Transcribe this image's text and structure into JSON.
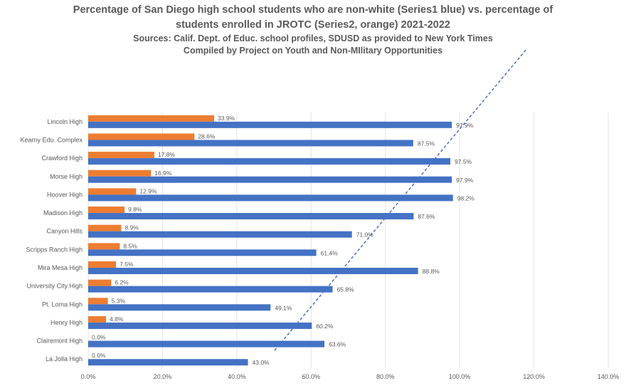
{
  "chart_data": {
    "type": "bar",
    "orientation": "horizontal",
    "title_lines": [
      "Percentage of San Diego high school students who are non-white (Series1 blue) vs. percentage of",
      "students enrolled in JROTC (Series2, orange) 2021-2022"
    ],
    "subtitle_lines": [
      "Sources: Calif. Dept. of Educ. school profiles, SDUSD as provided to New York Times",
      "Compiled by Project on Youth and Non-MIlitary Opportunities"
    ],
    "categories": [
      "Lincoln High",
      "Kearny Edu. Complex",
      "Crawford High",
      "Morse High",
      "Hoover High",
      "Madison High",
      "Canyon Hills",
      "Scripps Ranch High",
      "Mira Mesa High",
      "University City High",
      "Pt. Loma High",
      "Henry High",
      "Clairemont High",
      "La Jolla High"
    ],
    "series": [
      {
        "name": "Series1",
        "color": "#4472C4",
        "values": [
          97.9,
          87.5,
          97.5,
          97.9,
          98.2,
          87.6,
          71.0,
          61.4,
          88.8,
          65.8,
          49.1,
          60.2,
          63.6,
          43.0
        ]
      },
      {
        "name": "Series2",
        "color": "#ED7D31",
        "values": [
          33.9,
          28.6,
          17.8,
          16.9,
          12.9,
          9.8,
          8.9,
          8.5,
          7.5,
          6.2,
          5.3,
          4.8,
          0.0,
          0.0
        ]
      }
    ],
    "xlim": [
      0,
      140
    ],
    "xticks": [
      "0.0%",
      "20.0%",
      "40.0%",
      "60.0%",
      "80.0%",
      "100.0%",
      "120.0%",
      "140.0%"
    ],
    "trendline": {
      "style": "dashed",
      "color": "#4472C4"
    },
    "grid": true
  }
}
